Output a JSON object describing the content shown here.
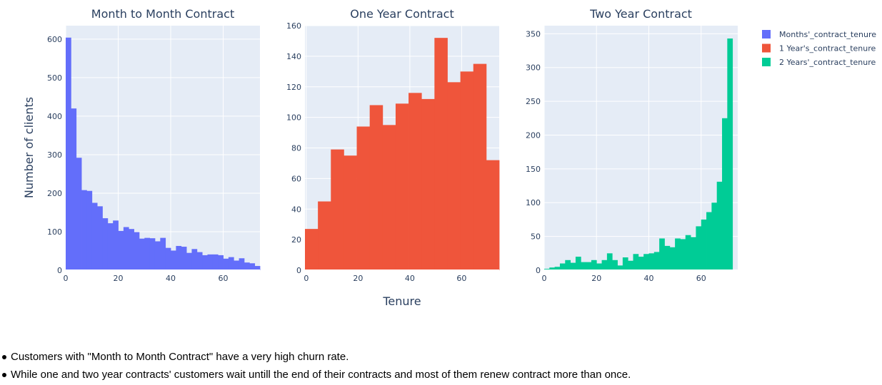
{
  "chart_data": {
    "type": "bar",
    "y_axis_label": "Number of clients",
    "x_axis_label": "Tenure",
    "panels": [
      {
        "title": "Month to Month Contract",
        "series_name": "Months'_contract_tenure",
        "color": "#636efa",
        "bin_size": 2,
        "bin_start": 0,
        "xlim": [
          0,
          74
        ],
        "ylim": [
          0,
          635
        ],
        "y_ticks": [
          0,
          100,
          200,
          300,
          400,
          500,
          600
        ],
        "x_ticks": [
          0,
          20,
          40,
          60
        ],
        "values": [
          604,
          420,
          292,
          208,
          206,
          175,
          166,
          135,
          122,
          129,
          102,
          112,
          107,
          99,
          82,
          84,
          83,
          75,
          84,
          58,
          51,
          63,
          61,
          45,
          55,
          47,
          39,
          41,
          41,
          39,
          30,
          34,
          25,
          31,
          20,
          18,
          11
        ]
      },
      {
        "title": "One Year Contract",
        "series_name": "1 Year's_contract_tenure",
        "color": "#EF553B",
        "bin_size": 5,
        "bin_start": -0.5,
        "xlim": [
          -0.5,
          74.5
        ],
        "ylim": [
          0,
          160
        ],
        "y_ticks": [
          0,
          20,
          40,
          60,
          80,
          100,
          120,
          140,
          160
        ],
        "x_ticks": [
          0,
          20,
          40,
          60
        ],
        "values": [
          27,
          45,
          79,
          75,
          94,
          108,
          95,
          109,
          116,
          112,
          152,
          123,
          130,
          135,
          72
        ]
      },
      {
        "title": "Two Year Contract",
        "series_name": "2 Years'_contract_tenure",
        "color": "#00cc96",
        "bin_size": 2,
        "bin_start": 0,
        "xlim": [
          0,
          74
        ],
        "ylim": [
          0,
          362
        ],
        "y_ticks": [
          0,
          50,
          100,
          150,
          200,
          250,
          300,
          350
        ],
        "x_ticks": [
          0,
          20,
          40,
          60
        ],
        "values": [
          2,
          4,
          5,
          10,
          15,
          11,
          20,
          12,
          12,
          15,
          10,
          15,
          25,
          15,
          7,
          19,
          14,
          24,
          20,
          24,
          25,
          27,
          47,
          36,
          34,
          47,
          46,
          52,
          49,
          65,
          75,
          86,
          100,
          131,
          225,
          343
        ]
      }
    ],
    "legend": {
      "position": "top-right",
      "entries": [
        {
          "label": "Months'_contract_tenure",
          "color": "#636efa"
        },
        {
          "label": "1 Year's_contract_tenure",
          "color": "#EF553B"
        },
        {
          "label": "2 Years'_contract_tenure",
          "color": "#00cc96"
        }
      ]
    },
    "grid": true,
    "plot_background": "#e5ecf6",
    "gridline_color": "#ffffff"
  },
  "notes": [
    "Customers with \"Month to Month Contract\" have a very high churn rate.",
    "While one and two year contracts' customers wait untill the end of their contracts and most of them renew contract more than once."
  ]
}
